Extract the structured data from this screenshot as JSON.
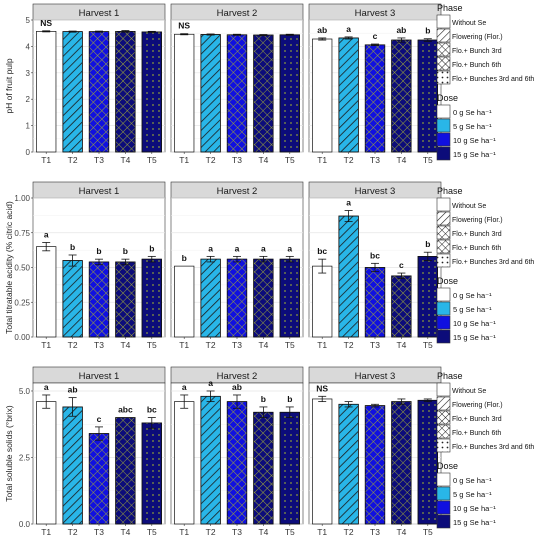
{
  "legend": {
    "phase_title": "Phase",
    "phase_items": [
      {
        "label": "Without Se",
        "pattern": "none"
      },
      {
        "label": "Flowering (Flor.)",
        "pattern": "diag"
      },
      {
        "label": "Flo.+ Bunch 3rd",
        "pattern": "cross"
      },
      {
        "label": "Flo.+ Bunch 6th",
        "pattern": "cross"
      },
      {
        "label": "Flo.+ Bunches 3rd and 6th",
        "pattern": "dots"
      }
    ],
    "dose_title": "Dose",
    "dose_items": [
      {
        "label": "0 g Se ha⁻¹",
        "color": "#ffffff"
      },
      {
        "label": "5 g Se ha⁻¹",
        "color": "#29b6e8"
      },
      {
        "label": "10 g Se ha⁻¹",
        "color": "#1010e0"
      },
      {
        "label": "15 g Se ha⁻¹",
        "color": "#0c0c7a"
      }
    ]
  },
  "chart_data": [
    {
      "type": "bar",
      "ylabel": "pH of fruit pulp",
      "ylim": [
        0,
        5
      ],
      "yticks": [
        0,
        1,
        2,
        3,
        4,
        5
      ],
      "categories": [
        "T1",
        "T2",
        "T3",
        "T4",
        "T5"
      ],
      "panels": [
        {
          "title": "Harvest 1",
          "values": [
            4.57,
            4.56,
            4.56,
            4.57,
            4.55
          ],
          "errors": [
            0.02,
            0.02,
            0.02,
            0.03,
            0.02
          ],
          "letters": [
            "NS",
            "",
            "",
            "",
            ""
          ]
        },
        {
          "title": "Harvest 2",
          "values": [
            4.46,
            4.45,
            4.44,
            4.43,
            4.44
          ],
          "errors": [
            0.02,
            0.02,
            0.02,
            0.02,
            0.02
          ],
          "letters": [
            "NS",
            "",
            "",
            "",
            ""
          ]
        },
        {
          "title": "Harvest 3",
          "values": [
            4.28,
            4.32,
            4.06,
            4.24,
            4.24
          ],
          "errors": [
            0.04,
            0.04,
            0.03,
            0.08,
            0.05
          ],
          "letters": [
            "ab",
            "a",
            "c",
            "ab",
            "b"
          ]
        }
      ]
    },
    {
      "type": "bar",
      "ylabel": "Total titratable acidity (% citric acid)",
      "ylim": [
        0,
        1
      ],
      "yticks": [
        0.0,
        0.25,
        0.5,
        0.75,
        1.0
      ],
      "yticklabels": [
        "0.00",
        "0.25",
        "0.50",
        "0.75",
        "1.00"
      ],
      "categories": [
        "T1",
        "T2",
        "T3",
        "T4",
        "T5"
      ],
      "panels": [
        {
          "title": "Harvest 1",
          "values": [
            0.65,
            0.55,
            0.54,
            0.54,
            0.56
          ],
          "errors": [
            0.03,
            0.04,
            0.02,
            0.02,
            0.02
          ],
          "letters": [
            "a",
            "b",
            "b",
            "b",
            "b"
          ]
        },
        {
          "title": "Harvest 2",
          "values": [
            0.51,
            0.56,
            0.56,
            0.56,
            0.56
          ],
          "errors": [
            0.0,
            0.02,
            0.02,
            0.02,
            0.02
          ],
          "letters": [
            "b",
            "a",
            "a",
            "a",
            "a"
          ]
        },
        {
          "title": "Harvest 3",
          "values": [
            0.51,
            0.87,
            0.5,
            0.44,
            0.58
          ],
          "errors": [
            0.05,
            0.04,
            0.03,
            0.02,
            0.03
          ],
          "letters": [
            "bc",
            "a",
            "bc",
            "c",
            "b"
          ]
        }
      ]
    },
    {
      "type": "bar",
      "ylabel": "Total soluble solids (°brix)",
      "ylim": [
        0,
        5.3
      ],
      "yticks": [
        0.0,
        2.5,
        5.0
      ],
      "yticklabels": [
        "0.0",
        "2.5",
        "5.0"
      ],
      "categories": [
        "T1",
        "T2",
        "T3",
        "T4",
        "T5"
      ],
      "panels": [
        {
          "title": "Harvest 1",
          "values": [
            4.6,
            4.4,
            3.4,
            4.0,
            3.8
          ],
          "errors": [
            0.25,
            0.35,
            0.25,
            0.0,
            0.2
          ],
          "letters": [
            "a",
            "ab",
            "c",
            "abc",
            "bc"
          ]
        },
        {
          "title": "Harvest 2",
          "values": [
            4.6,
            4.8,
            4.6,
            4.2,
            4.2
          ],
          "errors": [
            0.25,
            0.2,
            0.25,
            0.2,
            0.2
          ],
          "letters": [
            "a",
            "a",
            "ab",
            "b",
            "b"
          ]
        },
        {
          "title": "Harvest 3",
          "values": [
            4.7,
            4.5,
            4.45,
            4.6,
            4.65
          ],
          "errors": [
            0.1,
            0.1,
            0.05,
            0.1,
            0.05
          ],
          "letters": [
            "NS",
            "",
            "",
            "",
            ""
          ]
        }
      ]
    }
  ],
  "bar_styles": [
    {
      "fill": "#ffffff",
      "pattern": "none"
    },
    {
      "fill": "#29b6e8",
      "pattern": "diag"
    },
    {
      "fill": "#1010e0",
      "pattern": "cross"
    },
    {
      "fill": "#0c0c7a",
      "pattern": "cross"
    },
    {
      "fill": "#0c0c7a",
      "pattern": "dots"
    }
  ]
}
